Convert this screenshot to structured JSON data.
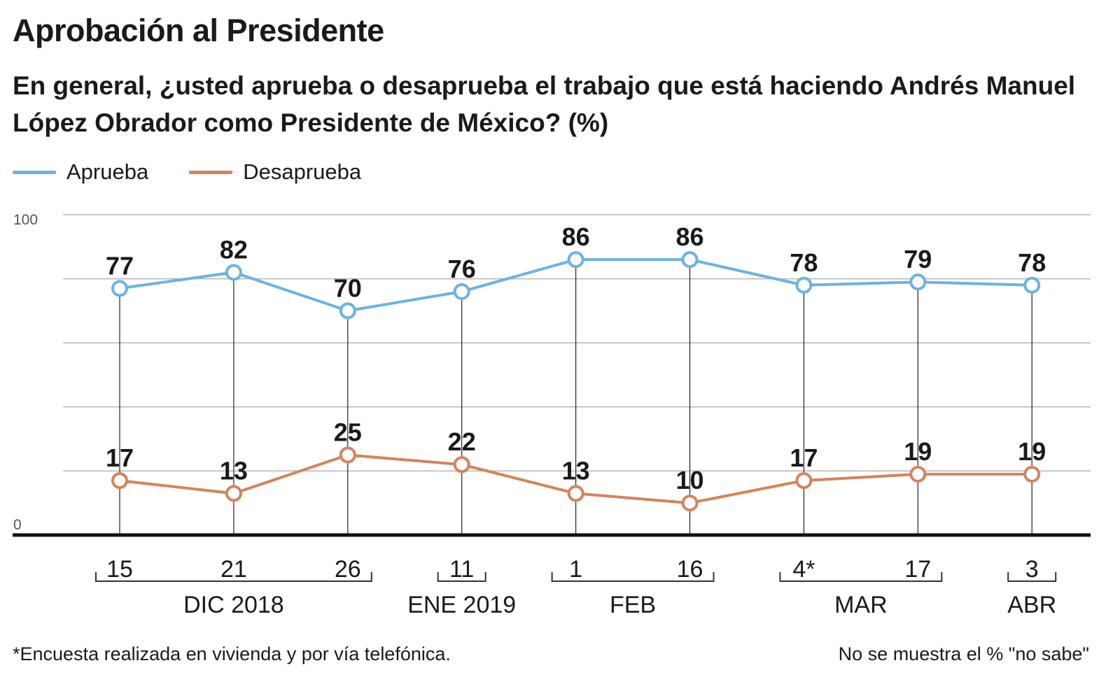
{
  "title": "Aprobación al Presidente",
  "subtitle": "En general, ¿usted aprueba o desaprueba el trabajo que está haciendo Andrés Manuel López Obrador como Presidente de México? (%)",
  "footnote": "*Encuesta realizada en vivienda y por vía telefónica.",
  "note": "No se muestra el % \"no sabe\"",
  "colors": {
    "aprueba": "#6cb2e3",
    "desaprueba": "#d4845a",
    "grid": "#b5b5b5",
    "axis": "#111111",
    "text": "#1a1a1a"
  },
  "chart_data": {
    "type": "line",
    "title": "Aprobación al Presidente",
    "x": [
      "15",
      "21",
      "26",
      "11",
      "1",
      "16",
      "4*",
      "17",
      "3"
    ],
    "month_groups": [
      {
        "label": "DIC 2018",
        "start": 0,
        "end": 2
      },
      {
        "label": "ENE 2019",
        "start": 3,
        "end": 3
      },
      {
        "label": "FEB",
        "start": 4,
        "end": 5
      },
      {
        "label": "MAR",
        "start": 6,
        "end": 7
      },
      {
        "label": "ABR",
        "start": 8,
        "end": 8
      }
    ],
    "series": [
      {
        "name": "Aprueba",
        "color": "#6cb2e3",
        "values": [
          77,
          82,
          70,
          76,
          86,
          86,
          78,
          79,
          78
        ]
      },
      {
        "name": "Desaprueba",
        "color": "#d4845a",
        "values": [
          17,
          13,
          25,
          22,
          13,
          10,
          17,
          19,
          19
        ]
      }
    ],
    "ylim": [
      0,
      100
    ],
    "yticks": [
      0,
      20,
      40,
      60,
      80,
      100
    ],
    "ytick_labels": [
      "0",
      "",
      "",
      "",
      "",
      "100"
    ],
    "grid": true,
    "legend": "top-left",
    "data_labels": true
  }
}
